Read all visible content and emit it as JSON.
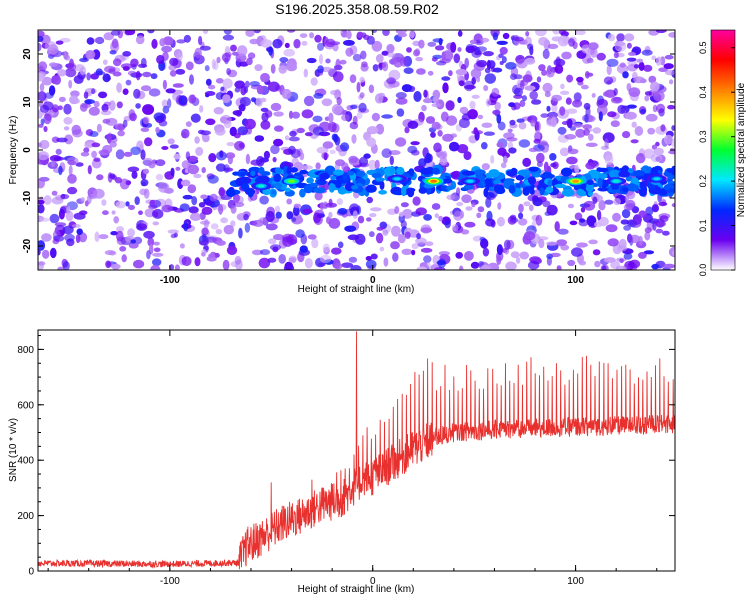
{
  "title": "S196.2025.358.08.59.R02",
  "colors": {
    "frame": "#000000",
    "snr_line": "#e8312e",
    "background": "#ffffff"
  },
  "chart_data": [
    {
      "type": "heatmap",
      "xlabel": "Height of straight line (km)",
      "ylabel": "Frequency (Hz)",
      "xlim": [
        -165,
        149
      ],
      "ylim": [
        -25,
        25
      ],
      "xticks": [
        -100,
        0,
        100
      ],
      "yticks": [
        -20,
        -10,
        0,
        10,
        20
      ],
      "colorbar": {
        "label": "Normalized spectral amplitude",
        "range": [
          0,
          0.54
        ],
        "ticks": [
          0.0,
          0.1,
          0.2,
          0.3,
          0.4,
          0.5
        ],
        "colormap": [
          "#ffffff",
          "#6a00f0",
          "#0028ff",
          "#00e8ff",
          "#00ff30",
          "#ffff00",
          "#ff8000",
          "#ff0000",
          "#ff00a0"
        ]
      },
      "band": {
        "center_frequency_hz": -6.5,
        "x_start_km": -70,
        "x_end_km": 149,
        "hotspots": [
          {
            "x": -40,
            "y": -6.5,
            "v": 0.3
          },
          {
            "x": 30,
            "y": -6.5,
            "v": 0.42
          },
          {
            "x": 100,
            "y": -6.5,
            "v": 0.4
          },
          {
            "x": -55,
            "y": -7.5,
            "v": 0.22
          },
          {
            "x": 12,
            "y": -6.0,
            "v": 0.2
          },
          {
            "x": 48,
            "y": -6.5,
            "v": 0.2
          },
          {
            "x": 120,
            "y": -6.5,
            "v": 0.22
          },
          {
            "x": 140,
            "y": -6.0,
            "v": 0.2
          }
        ]
      }
    },
    {
      "type": "line",
      "xlabel": "Height of straight line (km)",
      "ylabel": "SNR (10 * v/v)",
      "xlim": [
        -165,
        149
      ],
      "ylim": [
        0,
        870
      ],
      "xticks": [
        -100,
        0,
        100
      ],
      "yticks": [
        0,
        200,
        400,
        600,
        800
      ],
      "profile": [
        {
          "x": -165,
          "y": 28
        },
        {
          "x": -100,
          "y": 25
        },
        {
          "x": -66,
          "y": 30
        },
        {
          "x": -62,
          "y": 90
        },
        {
          "x": -55,
          "y": 120
        },
        {
          "x": -45,
          "y": 170
        },
        {
          "x": -35,
          "y": 200
        },
        {
          "x": -25,
          "y": 240
        },
        {
          "x": -15,
          "y": 260
        },
        {
          "x": -10,
          "y": 300
        },
        {
          "x": -5,
          "y": 330
        },
        {
          "x": 0,
          "y": 340
        },
        {
          "x": 10,
          "y": 390
        },
        {
          "x": 20,
          "y": 440
        },
        {
          "x": 30,
          "y": 480
        },
        {
          "x": 40,
          "y": 500
        },
        {
          "x": 60,
          "y": 510
        },
        {
          "x": 80,
          "y": 515
        },
        {
          "x": 100,
          "y": 520
        },
        {
          "x": 120,
          "y": 525
        },
        {
          "x": 149,
          "y": 530
        }
      ],
      "spikes": [
        {
          "x": -8,
          "y": 865
        },
        {
          "x": -50,
          "y": 320
        },
        {
          "x": -30,
          "y": 330
        }
      ]
    }
  ]
}
